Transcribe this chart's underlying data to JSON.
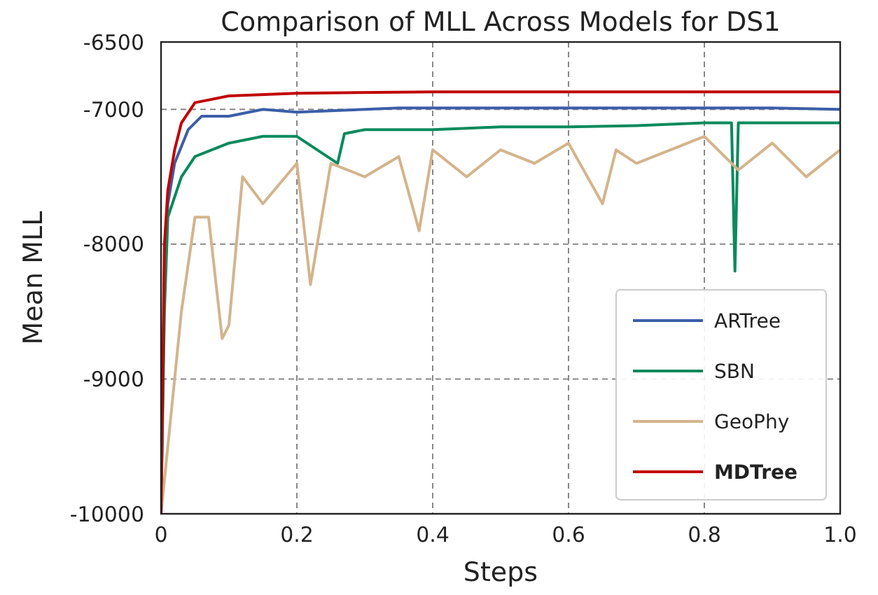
{
  "chart_data": {
    "type": "line",
    "title": "Comparison of MLL Across Models for DS1",
    "xlabel": "Steps",
    "ylabel": "Mean MLL",
    "xlim": [
      0,
      1
    ],
    "xticks": [
      {
        "value": 0,
        "label": "0"
      },
      0.2,
      0.4,
      0.6,
      0.8,
      {
        "value": 1,
        "label": "1.0"
      }
    ],
    "ylim": [
      -10000,
      -6500
    ],
    "yticks": [
      -10000,
      -9000,
      -8000,
      -7000,
      -6500
    ],
    "grid": true,
    "legend": "bottom right",
    "line_style": "solid",
    "marker": "none",
    "series": [
      {
        "name": "ARTree",
        "color": "#3b5ea8",
        "x": [
          0,
          0.005,
          0.01,
          0.02,
          0.04,
          0.06,
          0.1,
          0.15,
          0.2,
          0.25,
          0.3,
          0.35,
          0.4,
          0.5,
          0.6,
          0.7,
          0.8,
          0.9,
          1.0
        ],
        "values": [
          -10000,
          -8200,
          -7700,
          -7400,
          -7150,
          -7050,
          -7050,
          -7000,
          -7020,
          -7010,
          -7000,
          -6990,
          -6990,
          -6990,
          -6990,
          -6990,
          -6990,
          -6990,
          -7000
        ]
      },
      {
        "name": "SBN",
        "color": "#0a8a5c",
        "x": [
          0,
          0.005,
          0.01,
          0.03,
          0.05,
          0.1,
          0.15,
          0.2,
          0.26,
          0.27,
          0.3,
          0.4,
          0.5,
          0.6,
          0.7,
          0.8,
          0.84,
          0.845,
          0.85,
          0.9,
          1.0
        ],
        "values": [
          -10000,
          -8500,
          -7800,
          -7500,
          -7350,
          -7250,
          -7200,
          -7200,
          -7400,
          -7180,
          -7150,
          -7150,
          -7130,
          -7130,
          -7120,
          -7100,
          -7100,
          -8200,
          -7100,
          -7100,
          -7100
        ]
      },
      {
        "name": "GeoPhy",
        "color": "#d4b48c",
        "x": [
          0,
          0.02,
          0.03,
          0.05,
          0.07,
          0.09,
          0.1,
          0.12,
          0.15,
          0.2,
          0.22,
          0.25,
          0.3,
          0.35,
          0.38,
          0.4,
          0.45,
          0.5,
          0.55,
          0.6,
          0.65,
          0.67,
          0.7,
          0.75,
          0.8,
          0.85,
          0.9,
          0.95,
          1.0
        ],
        "values": [
          -10000,
          -9000,
          -8500,
          -7800,
          -7800,
          -8700,
          -8600,
          -7500,
          -7700,
          -7400,
          -8300,
          -7400,
          -7500,
          -7350,
          -7900,
          -7300,
          -7500,
          -7300,
          -7400,
          -7250,
          -7700,
          -7300,
          -7400,
          -7300,
          -7200,
          -7450,
          -7250,
          -7500,
          -7300
        ]
      },
      {
        "name": "MDTree",
        "color": "#c00000",
        "x": [
          0,
          0.005,
          0.01,
          0.02,
          0.03,
          0.05,
          0.1,
          0.2,
          0.4,
          0.6,
          0.8,
          1.0
        ],
        "values": [
          -10000,
          -8000,
          -7600,
          -7300,
          -7100,
          -6950,
          -6900,
          -6880,
          -6870,
          -6870,
          -6870,
          -6870
        ]
      }
    ]
  }
}
